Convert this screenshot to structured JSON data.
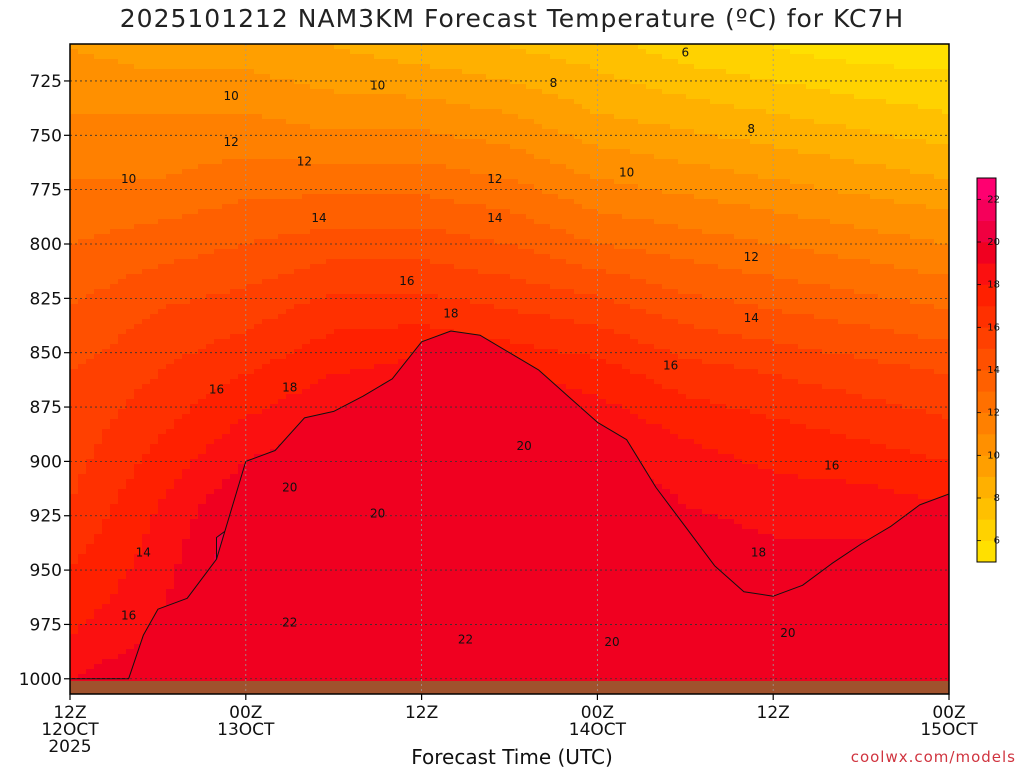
{
  "title": "2025101212 NAM3KM Forecast Temperature (ºC) for KC7H",
  "credit": "coolwx.com/models",
  "chart_data": {
    "type": "heatmap",
    "title": "2025101212 NAM3KM Forecast Temperature (ºC) for KC7H",
    "xlabel": "Forecast Time (UTC)",
    "ylabel": "",
    "x_range_hours": [
      0,
      60
    ],
    "ylim": [
      1007,
      708
    ],
    "y_scale": "pressure (hPa), increasing downward",
    "x_ticks": [
      {
        "hour": 0,
        "lines": [
          "12Z",
          "12OCT",
          "2025"
        ]
      },
      {
        "hour": 12,
        "lines": [
          "00Z",
          "13OCT"
        ]
      },
      {
        "hour": 24,
        "lines": [
          "12Z"
        ]
      },
      {
        "hour": 36,
        "lines": [
          "00Z",
          "14OCT"
        ]
      },
      {
        "hour": 48,
        "lines": [
          "12Z"
        ]
      },
      {
        "hour": 60,
        "lines": [
          "00Z",
          "15OCT"
        ]
      }
    ],
    "y_ticks": [
      725,
      750,
      775,
      800,
      825,
      850,
      875,
      900,
      925,
      950,
      975,
      1000
    ],
    "grid": true,
    "ground_level_hpa": 1001,
    "colorbar": {
      "placement": "right",
      "ticks": [
        6,
        8,
        10,
        12,
        14,
        16,
        18,
        20,
        22
      ],
      "levels": [
        {
          "min": 5,
          "max": 6,
          "color": "#ffe000"
        },
        {
          "min": 6,
          "max": 7,
          "color": "#ffd200"
        },
        {
          "min": 7,
          "max": 8,
          "color": "#ffc000"
        },
        {
          "min": 8,
          "max": 9,
          "color": "#ffb000"
        },
        {
          "min": 9,
          "max": 10,
          "color": "#ff9f00"
        },
        {
          "min": 10,
          "max": 11,
          "color": "#ff9000"
        },
        {
          "min": 11,
          "max": 12,
          "color": "#ff8000"
        },
        {
          "min": 12,
          "max": 13,
          "color": "#ff7000"
        },
        {
          "min": 13,
          "max": 14,
          "color": "#ff6000"
        },
        {
          "min": 14,
          "max": 15,
          "color": "#ff5000"
        },
        {
          "min": 15,
          "max": 16,
          "color": "#ff4000"
        },
        {
          "min": 16,
          "max": 17,
          "color": "#ff3000"
        },
        {
          "min": 17,
          "max": 18,
          "color": "#ff2000"
        },
        {
          "min": 18,
          "max": 19,
          "color": "#fb1010"
        },
        {
          "min": 19,
          "max": 20,
          "color": "#f00020"
        },
        {
          "min": 20,
          "max": 21,
          "color": "#f00040"
        },
        {
          "min": 21,
          "max": 22,
          "color": "#f5005a"
        },
        {
          "min": 22,
          "max": 23,
          "color": "#ff0070"
        }
      ]
    },
    "contours": [
      {
        "value": 6,
        "label_positions": [
          {
            "hour": 42,
            "hpa": 712
          }
        ]
      },
      {
        "value": 8,
        "label_positions": [
          {
            "hour": 33,
            "hpa": 726
          },
          {
            "hour": 46.5,
            "hpa": 747
          }
        ]
      },
      {
        "value": 10,
        "label_positions": [
          {
            "hour": 4,
            "hpa": 770
          },
          {
            "hour": 11,
            "hpa": 732
          },
          {
            "hour": 21,
            "hpa": 727
          },
          {
            "hour": 38,
            "hpa": 767
          }
        ]
      },
      {
        "value": 12,
        "label_positions": [
          {
            "hour": 11,
            "hpa": 753
          },
          {
            "hour": 16,
            "hpa": 762
          },
          {
            "hour": 29,
            "hpa": 770
          },
          {
            "hour": 46.5,
            "hpa": 806
          }
        ]
      },
      {
        "value": 14,
        "label_positions": [
          {
            "hour": 5,
            "hpa": 942
          },
          {
            "hour": 17,
            "hpa": 788
          },
          {
            "hour": 29,
            "hpa": 788
          },
          {
            "hour": 46.5,
            "hpa": 834
          }
        ]
      },
      {
        "value": 16,
        "label_positions": [
          {
            "hour": 4,
            "hpa": 971
          },
          {
            "hour": 10,
            "hpa": 867
          },
          {
            "hour": 23,
            "hpa": 817
          },
          {
            "hour": 41,
            "hpa": 856
          },
          {
            "hour": 52,
            "hpa": 902
          }
        ]
      },
      {
        "value": 18,
        "label_positions": [
          {
            "hour": 15,
            "hpa": 866
          },
          {
            "hour": 26,
            "hpa": 832
          },
          {
            "hour": 47,
            "hpa": 942
          }
        ]
      },
      {
        "value": 20,
        "label_positions": [
          {
            "hour": 15,
            "hpa": 912
          },
          {
            "hour": 21,
            "hpa": 924
          },
          {
            "hour": 31,
            "hpa": 893
          },
          {
            "hour": 37,
            "hpa": 983
          },
          {
            "hour": 49,
            "hpa": 979
          }
        ]
      },
      {
        "value": 22,
        "label_positions": [
          {
            "hour": 15,
            "hpa": 974
          },
          {
            "hour": 27,
            "hpa": 982
          }
        ]
      }
    ],
    "regions": [
      {
        "name": "warm-core-20",
        "value": 20,
        "points": [
          [
            0,
            1000
          ],
          [
            10,
            1000
          ],
          [
            10,
            935
          ],
          [
            13,
            920
          ],
          [
            15,
            896
          ],
          [
            17,
            918
          ],
          [
            19,
            925
          ],
          [
            21,
            922
          ],
          [
            23,
            890
          ],
          [
            25,
            885
          ],
          [
            27,
            870
          ],
          [
            28,
            887
          ],
          [
            30,
            897
          ],
          [
            32,
            905
          ],
          [
            32,
            942
          ],
          [
            35,
            960
          ],
          [
            37,
            975
          ],
          [
            40,
            970
          ],
          [
            43,
            990
          ],
          [
            45,
            985
          ],
          [
            48,
            1000
          ],
          [
            52,
            1002
          ],
          [
            56,
            1002
          ],
          [
            60,
            1002
          ],
          [
            60,
            1007
          ],
          [
            0,
            1007
          ]
        ]
      },
      {
        "name": "warm-core-21",
        "value": 21,
        "points": [
          [
            12,
            1000
          ],
          [
            12,
            950
          ],
          [
            14,
            940
          ],
          [
            16,
            925
          ],
          [
            19,
            940
          ],
          [
            21,
            930
          ],
          [
            23,
            905
          ],
          [
            26,
            895
          ],
          [
            28,
            882
          ],
          [
            31,
            900
          ],
          [
            31,
            950
          ],
          [
            29,
            968
          ],
          [
            26,
            970
          ],
          [
            23,
            960
          ],
          [
            20,
            965
          ],
          [
            17,
            975
          ],
          [
            14,
            990
          ],
          [
            13,
            1000
          ]
        ]
      },
      {
        "name": "pocket-22-a",
        "value": 22,
        "points": [
          [
            11.8,
            981
          ],
          [
            13,
            976
          ],
          [
            14.5,
            973
          ],
          [
            15.5,
            976
          ],
          [
            16,
            985
          ],
          [
            15.5,
            993
          ],
          [
            14,
            996
          ],
          [
            12.5,
            994
          ],
          [
            11.8,
            988
          ]
        ]
      },
      {
        "name": "pocket-22-b",
        "value": 22,
        "points": [
          [
            20.5,
            981
          ],
          [
            22,
            974
          ],
          [
            24,
            974
          ],
          [
            25,
            971
          ],
          [
            26,
            975
          ],
          [
            26.5,
            982
          ],
          [
            26,
            990
          ],
          [
            24,
            995
          ],
          [
            22,
            994
          ],
          [
            20.8,
            988
          ]
        ]
      },
      {
        "name": "band-19",
        "value": 19,
        "points": [
          [
            4,
            1000
          ],
          [
            5,
            980
          ],
          [
            6,
            968
          ],
          [
            8,
            963
          ],
          [
            10,
            945
          ],
          [
            12,
            900
          ],
          [
            14,
            895
          ],
          [
            16,
            880
          ],
          [
            18,
            877
          ],
          [
            20,
            870
          ],
          [
            22,
            862
          ],
          [
            24,
            845
          ],
          [
            26,
            840
          ],
          [
            28,
            842
          ],
          [
            30,
            850
          ],
          [
            32,
            858
          ],
          [
            34,
            870
          ],
          [
            36,
            882
          ],
          [
            38,
            890
          ],
          [
            40,
            912
          ],
          [
            42,
            930
          ],
          [
            44,
            948
          ],
          [
            46,
            960
          ],
          [
            48,
            962
          ],
          [
            50,
            957
          ],
          [
            52,
            947
          ],
          [
            54,
            938
          ],
          [
            56,
            930
          ],
          [
            58,
            920
          ],
          [
            60,
            915
          ],
          [
            60,
            1002
          ],
          [
            0,
            1002
          ],
          [
            0,
            1000
          ]
        ]
      }
    ],
    "profile": {
      "hpa": [
        710,
        740,
        770,
        800,
        830,
        860,
        890,
        920,
        950,
        980,
        1000
      ],
      "note": "temperature (ºC) vs pressure for forecast hours 0,6,12,...,60",
      "rows": [
        {
          "hour": 0,
          "temps": [
            10,
            11,
            12,
            13,
            14,
            15,
            15.5,
            16,
            17,
            18,
            19
          ]
        },
        {
          "hour": 6,
          "temps": [
            9.5,
            11,
            12,
            13.5,
            15,
            16,
            17,
            18,
            18.5,
            19,
            20
          ]
        },
        {
          "hour": 12,
          "temps": [
            9.5,
            11,
            12.5,
            14,
            15.5,
            17,
            18.5,
            20,
            21,
            21.5,
            21.5
          ]
        },
        {
          "hour": 18,
          "temps": [
            9,
            10.5,
            12.5,
            14.5,
            16.5,
            18,
            19.5,
            20.5,
            21.5,
            22,
            21.5
          ]
        },
        {
          "hour": 24,
          "temps": [
            8.5,
            10.5,
            12.5,
            14.5,
            16.5,
            18.5,
            20,
            21,
            21.5,
            22,
            21.5
          ]
        },
        {
          "hour": 30,
          "temps": [
            8,
            10,
            12,
            14,
            16,
            18,
            20,
            20.5,
            21,
            21.5,
            21
          ]
        },
        {
          "hour": 36,
          "temps": [
            7.5,
            9,
            11,
            13,
            15.5,
            17.5,
            19,
            20,
            20.5,
            21,
            21
          ]
        },
        {
          "hour": 42,
          "temps": [
            6.5,
            8.5,
            10.5,
            12.5,
            14.5,
            16.5,
            18,
            19,
            20,
            20.5,
            20.5
          ]
        },
        {
          "hour": 48,
          "temps": [
            6,
            8,
            10,
            12,
            14,
            16,
            17.5,
            18.5,
            19.5,
            20,
            20
          ]
        },
        {
          "hour": 54,
          "temps": [
            5.5,
            7.5,
            9.5,
            11.5,
            13.5,
            15.5,
            17,
            18.5,
            19.5,
            20,
            21
          ]
        },
        {
          "hour": 60,
          "temps": [
            5.5,
            7,
            9,
            11,
            13,
            15,
            16.5,
            18,
            19,
            19.5,
            20
          ]
        }
      ]
    }
  }
}
